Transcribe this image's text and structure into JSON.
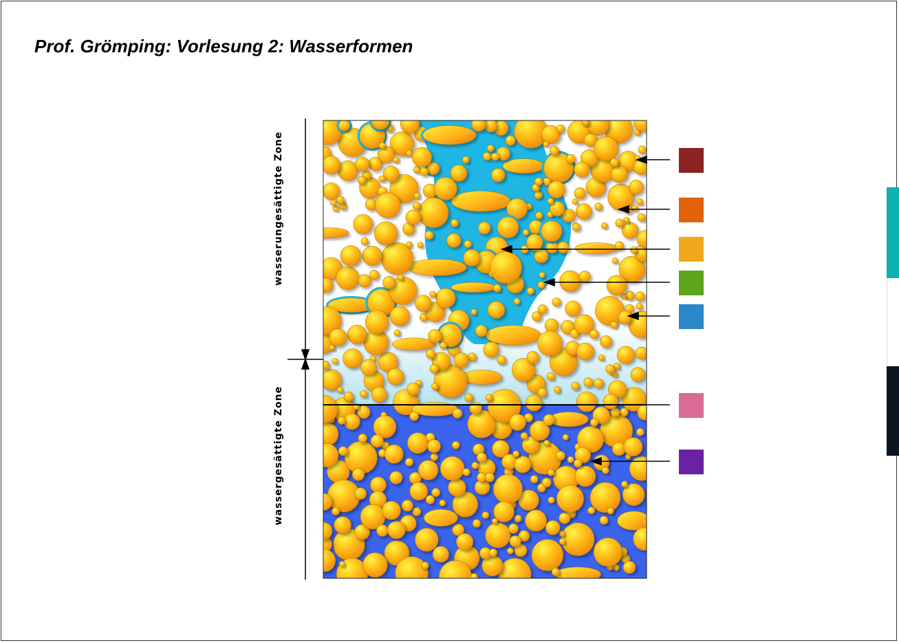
{
  "title": "Prof. Grömping: Vorlesung 2: Wasserformen",
  "zones": {
    "upper": "wasserungesättigte Zone",
    "lower": "wassergesättigte Zone"
  },
  "legend_swatches": [
    {
      "name": "swatch-1",
      "color": "#8b2323"
    },
    {
      "name": "swatch-2",
      "color": "#e0620c"
    },
    {
      "name": "swatch-3",
      "color": "#f2a81d"
    },
    {
      "name": "swatch-4",
      "color": "#5fa51c"
    },
    {
      "name": "swatch-5",
      "color": "#2a88c8"
    },
    {
      "name": "swatch-6",
      "color": "#d96a96"
    },
    {
      "name": "swatch-7",
      "color": "#6a22a4"
    }
  ],
  "side_bars": [
    {
      "name": "teal-bar",
      "color": "#0bb3b0"
    },
    {
      "name": "white-bar",
      "color": "#ffffff"
    },
    {
      "name": "dark-bar",
      "color": "#0b1620"
    }
  ],
  "colors": {
    "grain": "#fbb014",
    "grain_highlight": "#ffe94a",
    "groundwater": "#3a63ee",
    "seepage": "#1fb6e4",
    "capillary": "#bfe6f2"
  }
}
